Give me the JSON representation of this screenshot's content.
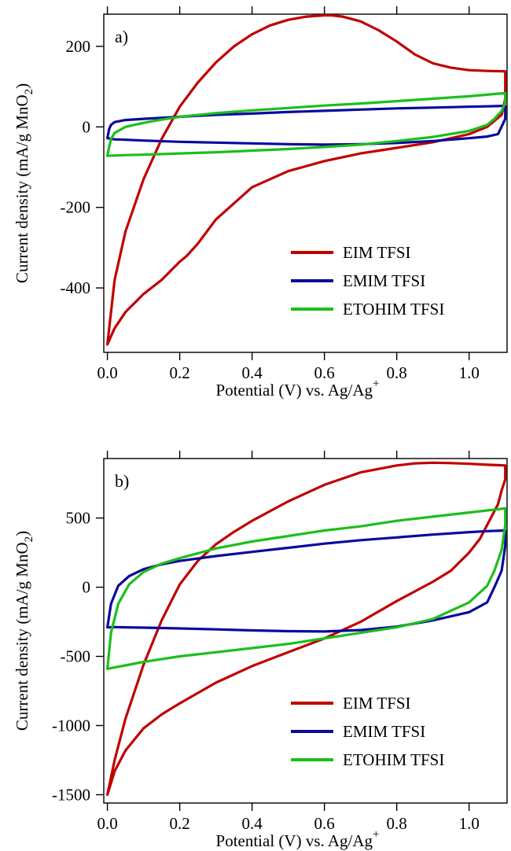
{
  "colors": {
    "EIM TFSI": "#c00000",
    "EMIM TFSI": "#0a0a9e",
    "ETOHIM TFSI": "#1bbf1b"
  },
  "chart_data": [
    {
      "type": "line",
      "panel": "a)",
      "xlabel": "Potential (V) vs. Ag/Ag",
      "xlabel_sup": "+",
      "ylabel": "Current density (mA/g MnO",
      "ylabel_sub": "2",
      "ylabel_end": ")",
      "xlim": [
        -0.01,
        1.105
      ],
      "ylim": [
        -560,
        280
      ],
      "xticks": [
        0.0,
        0.2,
        0.4,
        0.6,
        0.8,
        1.0
      ],
      "xtick_labels": [
        "0.0",
        "0.2",
        "0.4",
        "0.6",
        "0.8",
        "1.0"
      ],
      "yticks": [
        -400,
        -200,
        0,
        200
      ],
      "ytick_labels": [
        "-400",
        "-200",
        "0",
        "200"
      ],
      "legend_position": "bottom-right",
      "series": [
        {
          "name": "EIM TFSI",
          "x": [
            0.0,
            0.02,
            0.05,
            0.1,
            0.15,
            0.2,
            0.25,
            0.3,
            0.35,
            0.4,
            0.45,
            0.5,
            0.55,
            0.6,
            0.62,
            0.65,
            0.7,
            0.75,
            0.8,
            0.85,
            0.9,
            0.95,
            1.0,
            1.05,
            1.1,
            1.1,
            1.09,
            1.07,
            1.05,
            1.0,
            0.9,
            0.8,
            0.7,
            0.6,
            0.5,
            0.4,
            0.35,
            0.3,
            0.25,
            0.22,
            0.2,
            0.15,
            0.1,
            0.05,
            0.02,
            0.0
          ],
          "y": [
            -540,
            -380,
            -260,
            -130,
            -30,
            50,
            110,
            160,
            200,
            230,
            252,
            266,
            274,
            277,
            277,
            274,
            262,
            240,
            212,
            180,
            158,
            147,
            141,
            139,
            138,
            70,
            30,
            15,
            0,
            -18,
            -38,
            -52,
            -66,
            -85,
            -110,
            -150,
            -190,
            -230,
            -290,
            -320,
            -335,
            -380,
            -415,
            -460,
            -500,
            -540
          ]
        },
        {
          "name": "EMIM TFSI",
          "x": [
            0.0,
            0.005,
            0.01,
            0.02,
            0.05,
            0.1,
            0.2,
            0.3,
            0.4,
            0.5,
            0.6,
            0.7,
            0.8,
            0.9,
            1.0,
            1.05,
            1.09,
            1.1,
            1.1,
            1.08,
            1.05,
            1.0,
            0.9,
            0.8,
            0.7,
            0.6,
            0.5,
            0.4,
            0.3,
            0.2,
            0.1,
            0.05,
            0.02,
            0.0
          ],
          "y": [
            -28,
            -5,
            5,
            12,
            17,
            20,
            25,
            30,
            33,
            37,
            40,
            43,
            46,
            48,
            50,
            51,
            52,
            52,
            20,
            -18,
            -24,
            -28,
            -35,
            -40,
            -43,
            -44,
            -43,
            -41,
            -39,
            -37,
            -34,
            -32,
            -31,
            -28
          ]
        },
        {
          "name": "ETOHIM TFSI",
          "x": [
            0.0,
            0.01,
            0.02,
            0.05,
            0.1,
            0.15,
            0.2,
            0.3,
            0.4,
            0.5,
            0.6,
            0.7,
            0.8,
            0.9,
            1.0,
            1.05,
            1.1,
            1.1,
            1.09,
            1.07,
            1.05,
            1.0,
            0.9,
            0.8,
            0.7,
            0.6,
            0.5,
            0.4,
            0.3,
            0.2,
            0.1,
            0.05,
            0.02,
            0.0
          ],
          "y": [
            -70,
            -30,
            -15,
            0,
            10,
            18,
            25,
            34,
            41,
            47,
            53,
            58,
            64,
            70,
            76,
            80,
            84,
            60,
            40,
            20,
            5,
            -10,
            -25,
            -35,
            -44,
            -50,
            -55,
            -59,
            -63,
            -66,
            -69,
            -70,
            -71,
            -72
          ]
        }
      ]
    },
    {
      "type": "line",
      "panel": "b)",
      "xlabel": "Potential (V) vs. Ag/Ag",
      "xlabel_sup": "+",
      "ylabel": "Current density (mA/g MnO",
      "ylabel_sub": "2",
      "ylabel_end": ")",
      "xlim": [
        -0.01,
        1.105
      ],
      "ylim": [
        -1560,
        930
      ],
      "xticks": [
        0.0,
        0.2,
        0.4,
        0.6,
        0.8,
        1.0
      ],
      "xtick_labels": [
        "0.0",
        "0.2",
        "0.4",
        "0.6",
        "0.8",
        "1.0"
      ],
      "yticks": [
        -1500,
        -1000,
        -500,
        0,
        500
      ],
      "ytick_labels": [
        "-1500",
        "-1000",
        "-500",
        "0",
        "500"
      ],
      "legend_position": "bottom-right",
      "series": [
        {
          "name": "EIM TFSI",
          "x": [
            0.0,
            0.02,
            0.05,
            0.1,
            0.15,
            0.2,
            0.25,
            0.3,
            0.35,
            0.4,
            0.5,
            0.6,
            0.7,
            0.8,
            0.85,
            0.9,
            0.95,
            1.0,
            1.05,
            1.1,
            1.1,
            1.09,
            1.08,
            1.06,
            1.03,
            1.0,
            0.95,
            0.9,
            0.8,
            0.7,
            0.6,
            0.5,
            0.4,
            0.3,
            0.2,
            0.15,
            0.1,
            0.05,
            0.02,
            0.0
          ],
          "y": [
            -1500,
            -1250,
            -950,
            -560,
            -240,
            20,
            190,
            310,
            400,
            480,
            620,
            740,
            830,
            880,
            895,
            900,
            897,
            892,
            885,
            880,
            780,
            700,
            600,
            500,
            350,
            250,
            120,
            40,
            -100,
            -250,
            -370,
            -470,
            -570,
            -690,
            -840,
            -920,
            -1020,
            -1180,
            -1330,
            -1500
          ]
        },
        {
          "name": "EMIM TFSI",
          "x": [
            0.0,
            0.01,
            0.03,
            0.06,
            0.1,
            0.15,
            0.2,
            0.3,
            0.4,
            0.5,
            0.6,
            0.7,
            0.8,
            0.9,
            1.0,
            1.05,
            1.1,
            1.1,
            1.09,
            1.07,
            1.05,
            1.0,
            0.9,
            0.8,
            0.7,
            0.6,
            0.5,
            0.4,
            0.3,
            0.2,
            0.1,
            0.05,
            0.02,
            0.0
          ],
          "y": [
            -290,
            -120,
            10,
            80,
            130,
            165,
            190,
            225,
            255,
            285,
            315,
            340,
            360,
            380,
            398,
            405,
            410,
            300,
            120,
            0,
            -110,
            -180,
            -240,
            -285,
            -310,
            -320,
            -318,
            -312,
            -305,
            -298,
            -292,
            -290,
            -288,
            -290
          ]
        },
        {
          "name": "ETOHIM TFSI",
          "x": [
            0.0,
            0.01,
            0.03,
            0.06,
            0.1,
            0.15,
            0.2,
            0.3,
            0.4,
            0.5,
            0.6,
            0.7,
            0.8,
            0.9,
            1.0,
            1.05,
            1.1,
            1.1,
            1.09,
            1.07,
            1.05,
            1.0,
            0.9,
            0.8,
            0.7,
            0.6,
            0.5,
            0.4,
            0.3,
            0.2,
            0.1,
            0.05,
            0.02,
            0.0
          ],
          "y": [
            -590,
            -330,
            -120,
            20,
            110,
            170,
            210,
            280,
            330,
            370,
            410,
            440,
            480,
            510,
            540,
            555,
            570,
            450,
            270,
            120,
            10,
            -110,
            -230,
            -290,
            -330,
            -370,
            -410,
            -440,
            -470,
            -500,
            -540,
            -565,
            -580,
            -590
          ]
        }
      ]
    }
  ]
}
